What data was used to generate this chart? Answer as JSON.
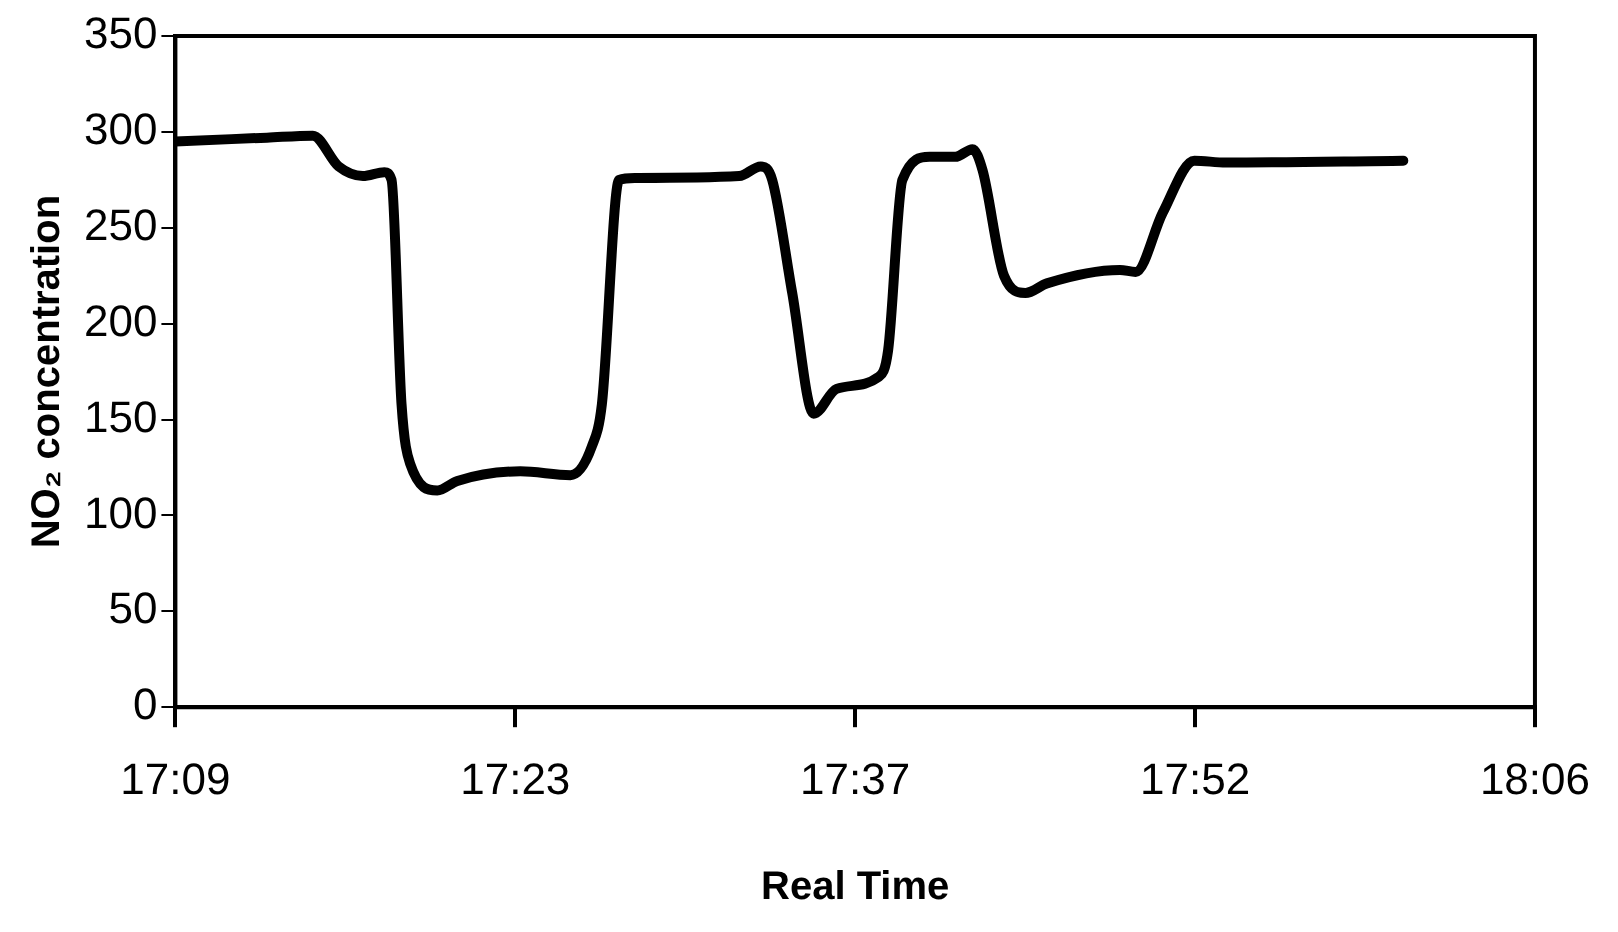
{
  "chart_data": {
    "type": "line",
    "xlabel": "Real Time",
    "ylabel": "NO₂ concentration",
    "x": [
      17.15,
      17.214,
      17.246,
      17.264,
      17.281,
      17.296,
      17.301,
      17.308,
      17.314,
      17.333,
      17.347,
      17.391,
      17.426,
      17.441,
      17.448,
      17.46,
      17.471,
      17.544,
      17.559,
      17.567,
      17.581,
      17.596,
      17.612,
      17.641,
      17.648,
      17.658,
      17.677,
      17.695,
      17.707,
      17.714,
      17.729,
      17.744,
      17.759,
      17.81,
      17.821,
      17.84,
      17.862,
      17.884,
      18.008
    ],
    "series": [
      {
        "color": "#000000",
        "values": [
          295,
          297,
          298,
          282,
          277,
          279,
          275,
          158,
          127,
          113,
          118,
          123,
          121,
          136,
          158,
          275,
          276,
          277,
          282,
          275,
          216,
          153,
          166,
          172,
          186,
          275,
          287,
          287,
          291,
          280,
          225,
          216,
          221,
          228,
          227,
          258,
          285,
          284,
          285
        ]
      }
    ],
    "xlim": [
      17.15,
      18.1
    ],
    "xticks": [
      {
        "value": 17.15,
        "label": "17:09"
      },
      {
        "value": 17.3875,
        "label": "17:23"
      },
      {
        "value": 17.625,
        "label": "17:37"
      },
      {
        "value": 17.8625,
        "label": "17:52"
      },
      {
        "value": 18.1,
        "label": "18:06"
      }
    ],
    "ylim": [
      0,
      350
    ],
    "yticks": [
      0,
      50,
      100,
      150,
      200,
      250,
      300,
      350
    ],
    "grid": false,
    "legend": false,
    "marker": "none",
    "line_style": "solid"
  }
}
